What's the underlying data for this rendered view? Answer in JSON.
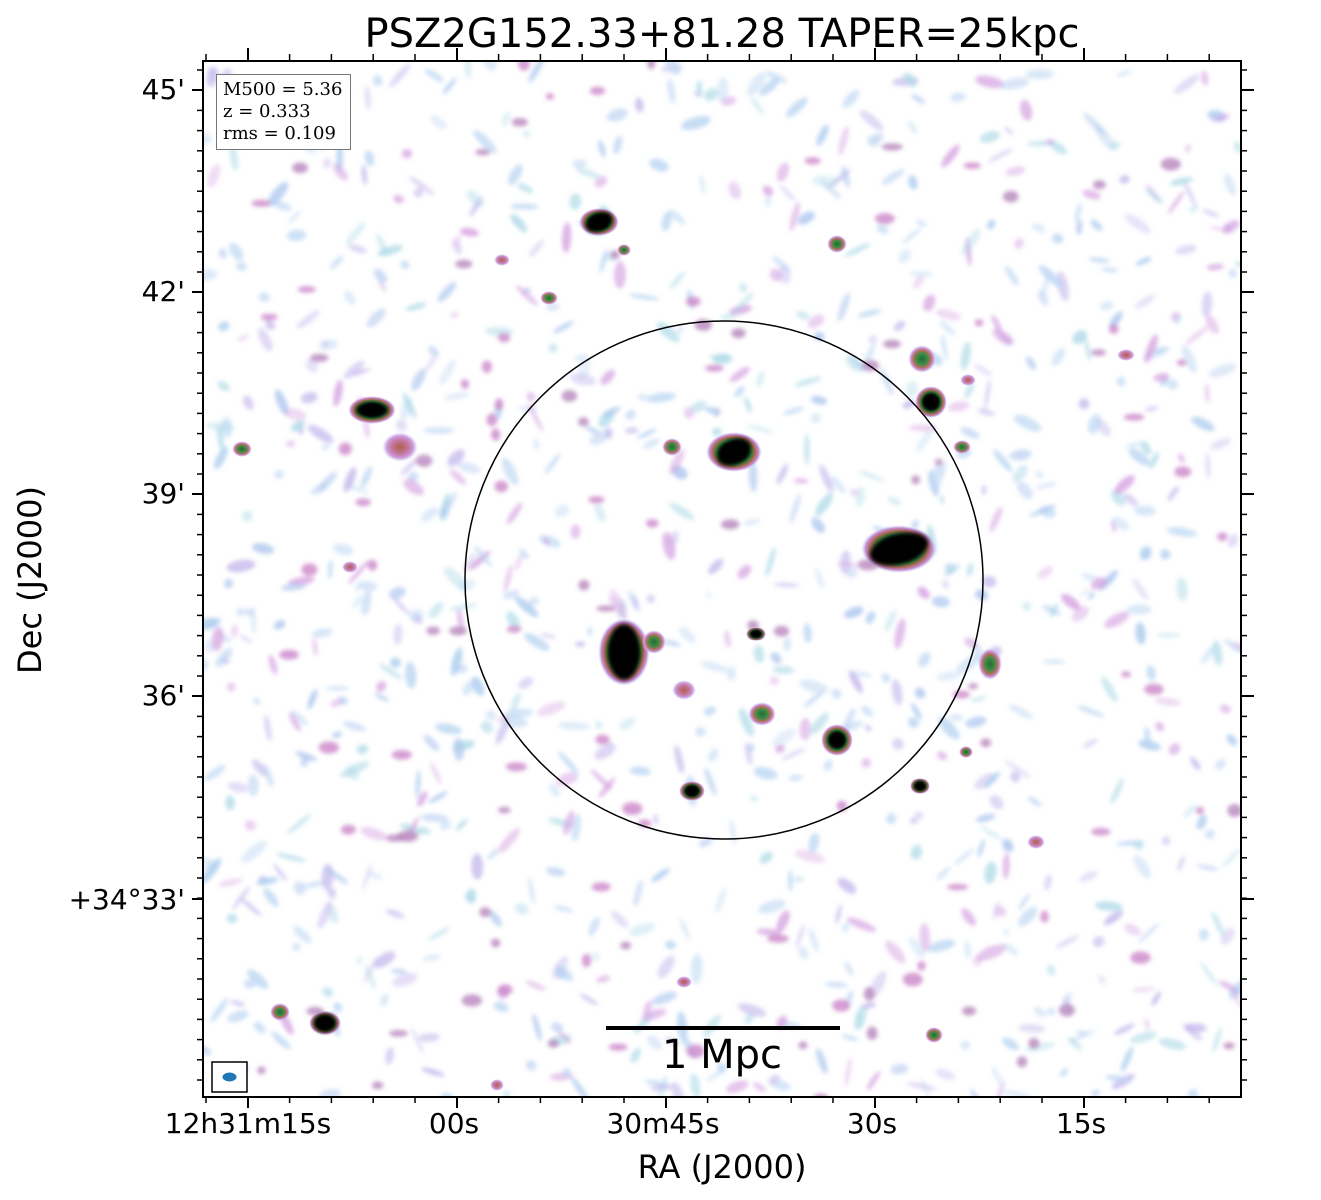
{
  "title": "PSZ2G152.33+81.28 TAPER=25kpc",
  "axes": {
    "xlabel": "RA (J2000)",
    "ylabel": "Dec (J2000)",
    "xticks": [
      "12h31m15s",
      "00s",
      "30m45s",
      "30s",
      "15s"
    ],
    "yticks": [
      "45'",
      "42'",
      "39'",
      "36'",
      "+34°33'"
    ]
  },
  "info": {
    "m500": "M500 = 5.36",
    "z": "z = 0.333",
    "rms": "rms = 0.109"
  },
  "scalebar": {
    "label": "1 Mpc"
  },
  "beam_color": "#1f77b4"
}
